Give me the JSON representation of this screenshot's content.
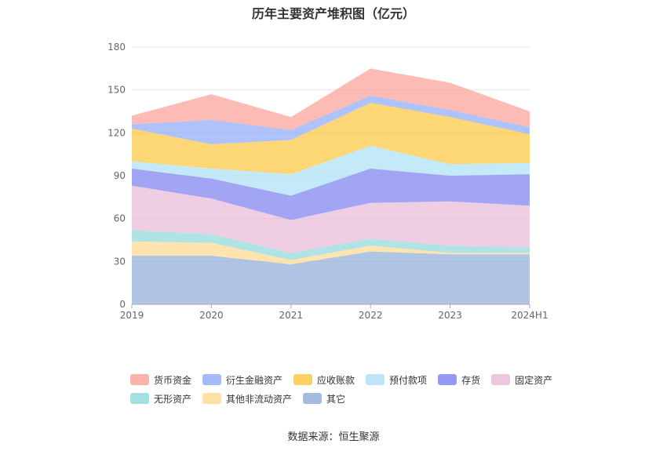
{
  "chart_data": {
    "type": "area",
    "stacked": true,
    "title": "历年主要资产堆积图（亿元）",
    "categories": [
      "2019",
      "2020",
      "2021",
      "2022",
      "2023",
      "2024H1"
    ],
    "ylim": [
      0,
      180
    ],
    "yticks": [
      0,
      30,
      60,
      90,
      120,
      150,
      180
    ],
    "grid": true,
    "legend_position": "bottom",
    "series": [
      {
        "name": "其它",
        "color": "#8eabd8",
        "values": [
          34,
          34,
          28,
          37,
          35,
          35
        ]
      },
      {
        "name": "其他非流动资产",
        "color": "#ffd98f",
        "values": [
          10,
          9,
          3,
          4,
          1,
          1
        ]
      },
      {
        "name": "无形资产",
        "color": "#8fd8d8",
        "values": [
          8,
          6,
          5,
          5,
          5,
          4
        ]
      },
      {
        "name": "固定资产",
        "color": "#e8b9d8",
        "values": [
          31,
          25,
          23,
          25,
          31,
          29
        ]
      },
      {
        "name": "存货",
        "color": "#7b7ff0",
        "values": [
          12,
          14,
          17,
          24,
          18,
          22
        ]
      },
      {
        "name": "预付款项",
        "color": "#abdff5",
        "values": [
          5,
          7,
          15,
          16,
          8,
          8
        ]
      },
      {
        "name": "应收账款",
        "color": "#fcc63c",
        "values": [
          23,
          17,
          24,
          30,
          33,
          20
        ]
      },
      {
        "name": "衍生金融资产",
        "color": "#8ea8f8",
        "values": [
          3,
          17,
          7,
          5,
          5,
          5
        ]
      },
      {
        "name": "货币资金",
        "color": "#fc9e96",
        "values": [
          6,
          18,
          9,
          19,
          19,
          11
        ]
      }
    ]
  },
  "legend": {
    "row1": [
      "货币资金",
      "衍生金融资产",
      "应收账款",
      "预付款项",
      "存货",
      "固定资产"
    ],
    "row2": [
      "无形资产",
      "其他非流动资产",
      "其它"
    ]
  },
  "source": "数据来源：恒生聚源"
}
